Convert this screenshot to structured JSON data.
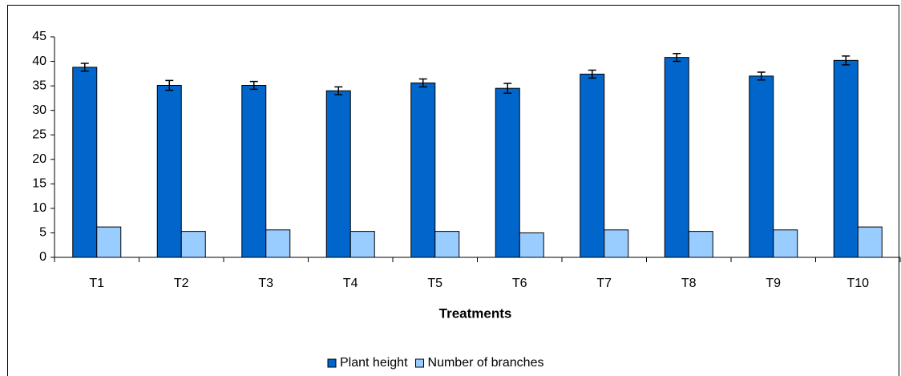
{
  "chart_data": {
    "type": "bar",
    "x_label": "Treatments",
    "categories": [
      "T1",
      "T2",
      "T3",
      "T4",
      "T5",
      "T6",
      "T7",
      "T8",
      "T9",
      "T10"
    ],
    "series": [
      {
        "name": "Plant height",
        "color": "#0066cc",
        "values": [
          38.8,
          35.1,
          35.1,
          34.0,
          35.6,
          34.5,
          37.4,
          40.8,
          37.0,
          40.2
        ],
        "errors": [
          0.8,
          1.0,
          0.8,
          0.8,
          0.8,
          1.0,
          0.8,
          0.8,
          0.8,
          0.9
        ]
      },
      {
        "name": "Number of branches",
        "color": "#99ccff",
        "values": [
          6.2,
          5.3,
          5.6,
          5.3,
          5.3,
          5.0,
          5.6,
          5.3,
          5.6,
          6.2
        ]
      }
    ],
    "ylim": [
      0,
      45
    ],
    "yticks": [
      0,
      5,
      10,
      15,
      20,
      25,
      30,
      35,
      40,
      45
    ],
    "grid": false,
    "legend": "bottom"
  }
}
